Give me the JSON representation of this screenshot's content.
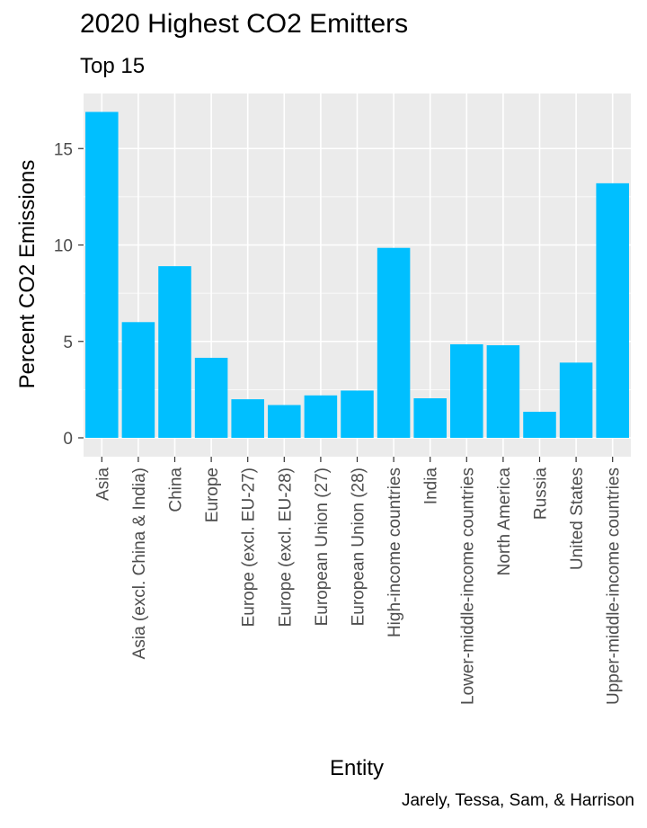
{
  "chart_data": {
    "type": "bar",
    "title": "2020 Highest CO2 Emitters",
    "subtitle": "Top 15",
    "caption": "Jarely, Tessa, Sam, & Harrison",
    "xlabel": "Entity",
    "ylabel": "Percent CO2 Emissions",
    "ylim": [
      0,
      17
    ],
    "yticks": [
      0,
      5,
      10,
      15
    ],
    "grid": true,
    "bar_color": "#00BFFF",
    "panel_color": "#EBEBEB",
    "grid_color": "#FFFFFF",
    "categories": [
      "Asia",
      "Asia (excl. China & India)",
      "China",
      "Europe",
      "Europe (excl. EU-27)",
      "Europe (excl. EU-28)",
      "European Union (27)",
      "European Union (28)",
      "High-income countries",
      "India",
      "Lower-middle-income countries",
      "North America",
      "Russia",
      "United States",
      "Upper-middle-income countries"
    ],
    "values": [
      16.9,
      6.0,
      8.9,
      4.15,
      2.0,
      1.7,
      2.2,
      2.45,
      9.85,
      2.05,
      4.85,
      4.8,
      1.35,
      3.9,
      13.2
    ]
  }
}
